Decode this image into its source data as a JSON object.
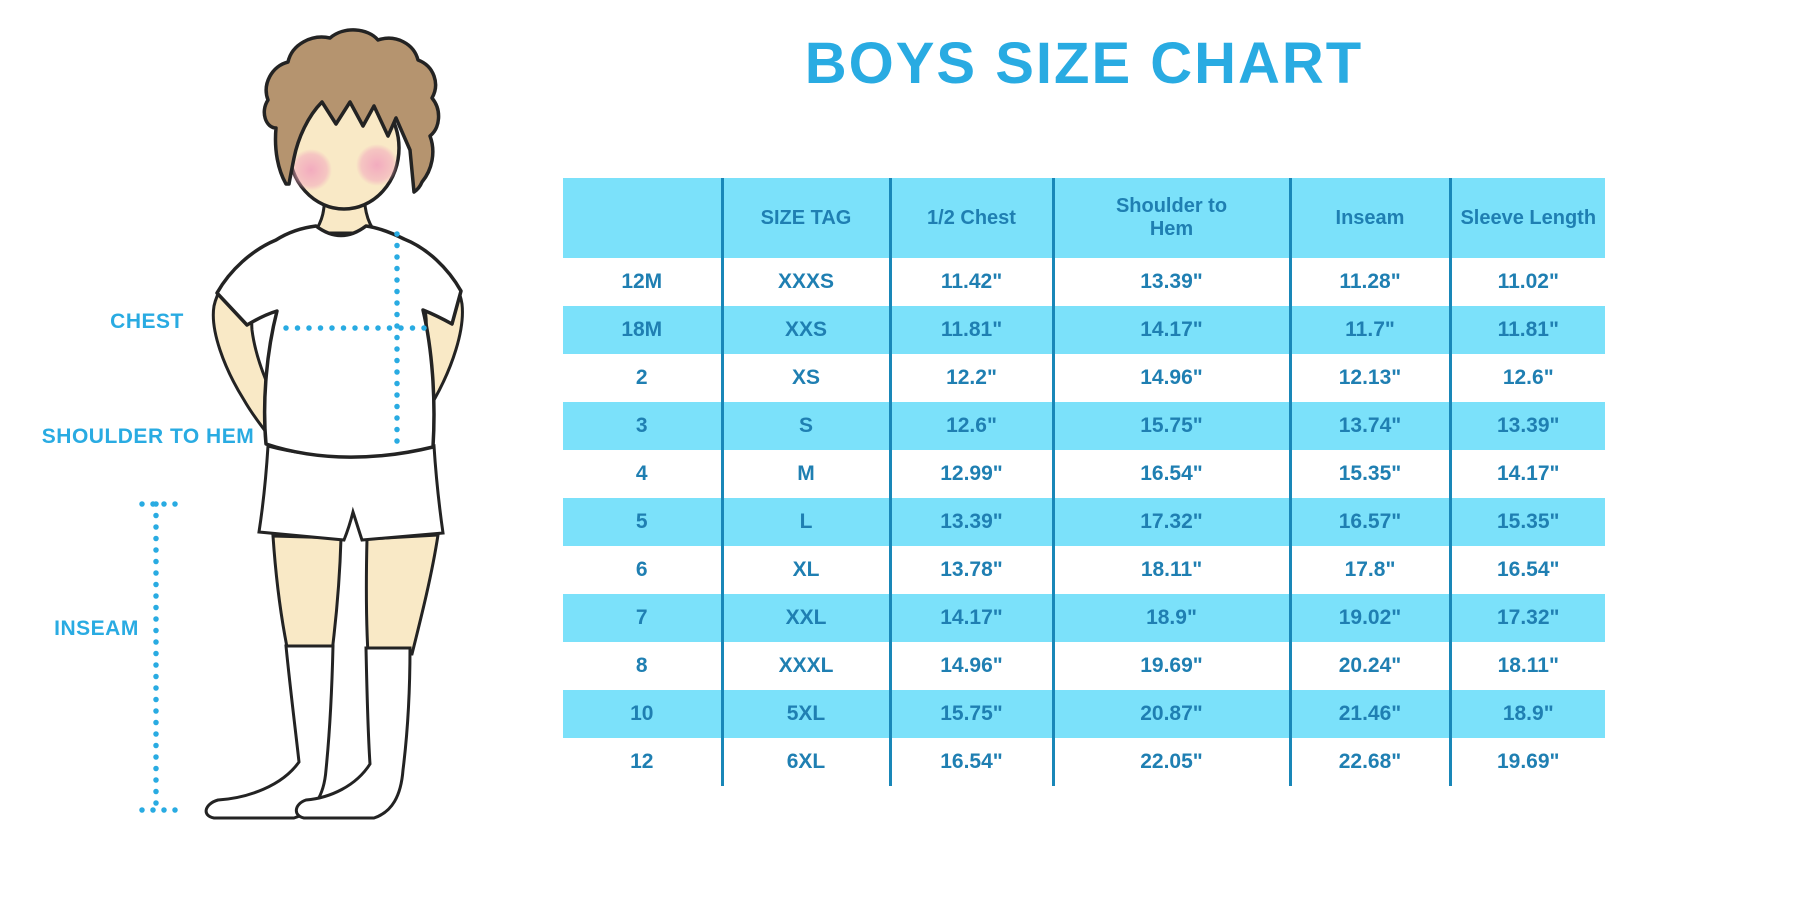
{
  "title": "BOYS SIZE CHART",
  "colors": {
    "accent_blue": "#29ABE2",
    "table_text": "#1F7FB2",
    "row_highlight": "#7BE1FA",
    "divider": "#1987B8",
    "skin": "#F9E9C6",
    "hair": "#B5946F",
    "blush": "#F2A8BE"
  },
  "figure": {
    "name": "boy-measurement-illustration",
    "labels": {
      "chest": "CHEST",
      "shoulder_to_hem": "SHOULDER TO HEM",
      "inseam": "INSEAM"
    }
  },
  "chart_data": {
    "type": "table",
    "title": "BOYS SIZE CHART",
    "columns": [
      "",
      "SIZE TAG",
      "1/2 Chest",
      "Shoulder to Hem",
      "Inseam",
      "Sleeve Length"
    ],
    "rows": [
      [
        "12M",
        "XXXS",
        "11.42\"",
        "13.39\"",
        "11.28\"",
        "11.02\""
      ],
      [
        "18M",
        "XXS",
        "11.81\"",
        "14.17\"",
        "11.7\"",
        "11.81\""
      ],
      [
        "2",
        "XS",
        "12.2\"",
        "14.96\"",
        "12.13\"",
        "12.6\""
      ],
      [
        "3",
        "S",
        "12.6\"",
        "15.75\"",
        "13.74\"",
        "13.39\""
      ],
      [
        "4",
        "M",
        "12.99\"",
        "16.54\"",
        "15.35\"",
        "14.17\""
      ],
      [
        "5",
        "L",
        "13.39\"",
        "17.32\"",
        "16.57\"",
        "15.35\""
      ],
      [
        "6",
        "XL",
        "13.78\"",
        "18.11\"",
        "17.8\"",
        "16.54\""
      ],
      [
        "7",
        "XXL",
        "14.17\"",
        "18.9\"",
        "19.02\"",
        "17.32\""
      ],
      [
        "8",
        "XXXL",
        "14.96\"",
        "19.69\"",
        "20.24\"",
        "18.11\""
      ],
      [
        "10",
        "5XL",
        "15.75\"",
        "20.87\"",
        "21.46\"",
        "18.9\""
      ],
      [
        "12",
        "6XL",
        "16.54\"",
        "22.05\"",
        "22.68\"",
        "19.69\""
      ]
    ],
    "layout": {
      "striping": "alternate rows highlighted light blue starting with second row (18M)",
      "grid": "vertical dividers only, no horizontal lines",
      "units": "inches"
    }
  }
}
